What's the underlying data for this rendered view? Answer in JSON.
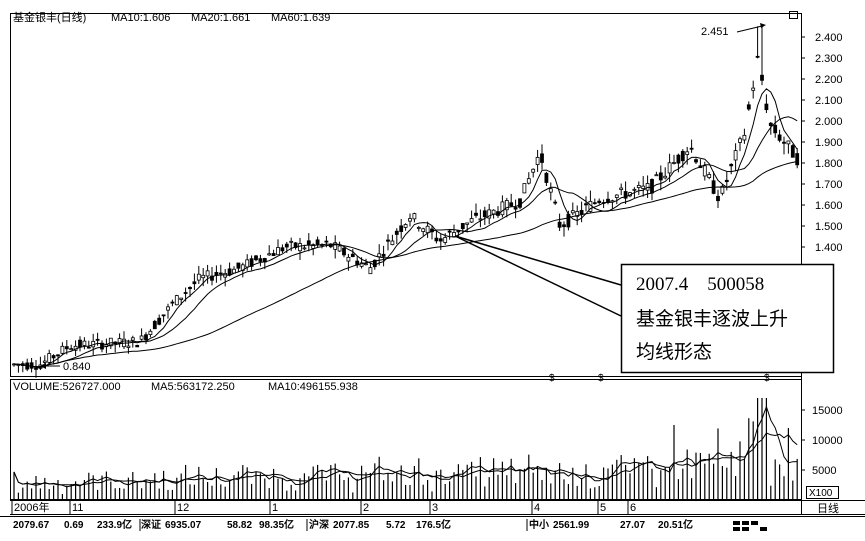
{
  "header": {
    "title": "基金银丰(日线)",
    "ma10": "MA10:1.606",
    "ma20": "MA20:1.661",
    "ma60": "MA60:1.639"
  },
  "volume_header": {
    "volume": "VOLUME:526727.000",
    "ma5": "MA5:563172.250",
    "ma10": "MA10:496155.938"
  },
  "annotation": {
    "line1": "2007.4    500058",
    "line2": "基金银丰逐波上升",
    "line3": "均线形态"
  },
  "markers": {
    "high": "2.451",
    "low": "0.840",
    "event_symbol": "$"
  },
  "volume_unit": "X100",
  "period_label": "日线",
  "status_bar": [
    {
      "name": "sh",
      "index": "2079.67",
      "change": "0.69",
      "amount": "233.9亿"
    },
    {
      "name": "sz",
      "prefix": "深证",
      "index": "6935.07",
      "change": "58.82",
      "amount": "98.35亿"
    },
    {
      "name": "hs",
      "prefix": "沪深",
      "index": "2077.85",
      "change": "5.72",
      "amount": "176.5亿"
    },
    {
      "name": "zx",
      "prefix": "中小",
      "index": "2561.99",
      "change": "27.07",
      "amount": "20.51亿"
    }
  ],
  "colors": {
    "background": "#ffffff",
    "foreground": "#000000"
  },
  "chart_data": [
    {
      "type": "candlestick",
      "title": "基金银丰(日线)",
      "y_axis_ticks": [
        "2.400",
        "2.300",
        "2.200",
        "2.100",
        "2.000",
        "1.900",
        "1.800",
        "1.700",
        "1.600",
        "1.500",
        "1.400"
      ],
      "ylim": [
        0.82,
        2.49
      ],
      "x_axis_ticks": [
        "2006年",
        "11",
        "12",
        "1",
        "2",
        "3",
        "4",
        "5",
        "6"
      ],
      "high": 2.451,
      "low": 0.84,
      "series": [
        {
          "name": "MA10",
          "last": 1.606
        },
        {
          "name": "MA20",
          "last": 1.661
        },
        {
          "name": "MA60",
          "last": 1.639
        }
      ],
      "grid": false
    },
    {
      "type": "bar",
      "title": "VOLUME",
      "y_axis_ticks": [
        "15000",
        "10000",
        "5000"
      ],
      "unit": "X100",
      "series": [
        {
          "name": "VOLUME",
          "last": 526727.0
        },
        {
          "name": "MA5",
          "last": 563172.25
        },
        {
          "name": "MA10",
          "last": 496155.938
        }
      ]
    }
  ]
}
